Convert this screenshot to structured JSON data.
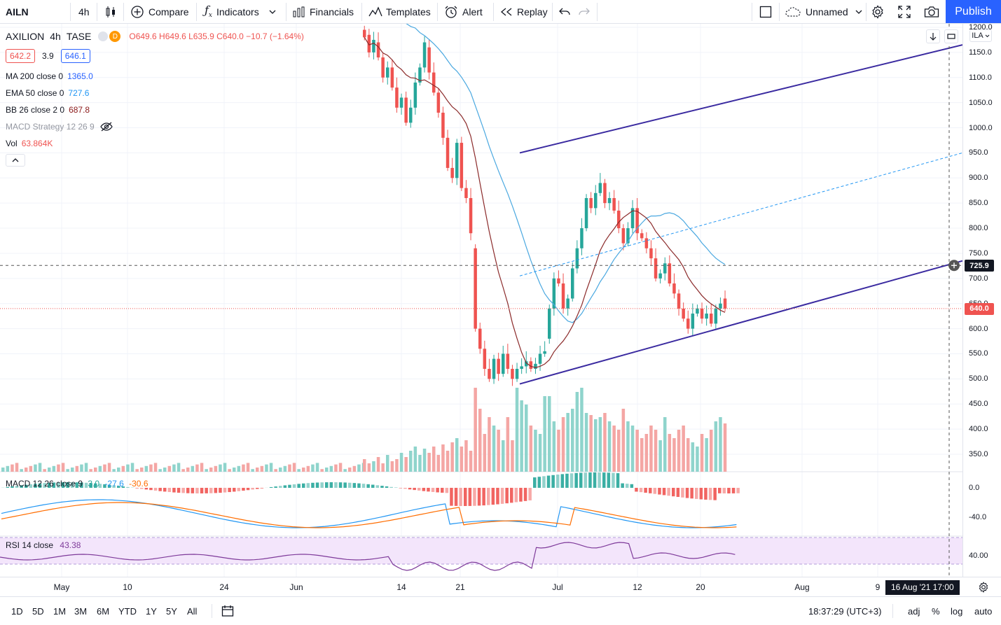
{
  "toolbar": {
    "symbol": "AILN",
    "interval": "4h",
    "compare": "Compare",
    "indicators": "Indicators",
    "financials": "Financials",
    "templates": "Templates",
    "alert": "Alert",
    "replay": "Replay",
    "layout_name": "Unnamed",
    "publish": "Publish"
  },
  "legend": {
    "name": "AXILION",
    "interval": "4h",
    "exchange": "TASE",
    "bid": "642.2",
    "spread": "3.9",
    "ask": "646.1",
    "ohlc": "O649.6  H649.6  L635.9  C640.0  −10.7  (−1.64%)",
    "indicators": [
      {
        "name": "MA 200 close 0",
        "value": "1365.0",
        "color": "#2962ff"
      },
      {
        "name": "EMA 50 close 0",
        "value": "727.6",
        "color": "#2196f3"
      },
      {
        "name": "BB 26 close 2 0",
        "value": "687.8",
        "color": "#8b1a1a"
      },
      {
        "name": "MACD Strategy 12 26 9",
        "value": "",
        "color": "#9598a1"
      },
      {
        "name": "Vol",
        "value": "63.864K",
        "color": "#ef5350"
      }
    ]
  },
  "price_scale": {
    "currency": "ILA",
    "labels": [
      "1200.0",
      "1150.0",
      "1100.0",
      "1050.0",
      "1000.0",
      "950.0",
      "900.0",
      "850.0",
      "800.0",
      "750.0",
      "700.0",
      "650.0",
      "600.0",
      "550.0",
      "500.0",
      "450.0",
      "400.0",
      "350.0"
    ],
    "crosshair_price": "725.9",
    "last_price": "640.0",
    "macd_labels": [
      "0.0",
      "-40.0"
    ],
    "rsi_labels": [
      "40.00"
    ]
  },
  "macd_legend": {
    "name": "MACD 12 26 close 9",
    "v1": "3.0",
    "v2": "-27.6",
    "v3": "-30.6"
  },
  "rsi_legend": {
    "name": "RSI 14 close",
    "value": "43.38"
  },
  "time_scale": {
    "labels": [
      "May",
      "10",
      "24",
      "Jun",
      "14",
      "21",
      "Jul",
      "12",
      "20",
      "Aug",
      "9"
    ],
    "crosshair_date": "16 Aug '21   17:00"
  },
  "bottom_bar": {
    "ranges": [
      "1D",
      "5D",
      "1M",
      "3M",
      "6M",
      "YTD",
      "1Y",
      "5Y",
      "All"
    ],
    "clock": "18:37:29 (UTC+3)",
    "adj": "adj",
    "percent": "%",
    "log": "log",
    "auto": "auto"
  },
  "colors": {
    "up": "#26a69a",
    "down": "#ef5350",
    "accent": "#2962ff",
    "channel": "#3a2aa0",
    "ema": "#4aa8e0",
    "bb": "#8b2a2a"
  },
  "chart_data": {
    "type": "candlestick",
    "interval": "4h",
    "price_axis_ticks": [
      350,
      400,
      450,
      500,
      550,
      600,
      650,
      700,
      750,
      800,
      850,
      900,
      950,
      1000,
      1050,
      1100,
      1150,
      1200
    ],
    "candles": [
      [
        1195,
        1180
      ],
      [
        1185,
        1150
      ],
      [
        1150,
        1175
      ],
      [
        1170,
        1140
      ],
      [
        1140,
        1100
      ],
      [
        1100,
        1120
      ],
      [
        1120,
        1080
      ],
      [
        1080,
        1040
      ],
      [
        1040,
        1060
      ],
      [
        1060,
        1010
      ],
      [
        1010,
        1040
      ],
      [
        1040,
        1090
      ],
      [
        1090,
        1120
      ],
      [
        1120,
        1170
      ],
      [
        1160,
        1110
      ],
      [
        1110,
        1070
      ],
      [
        1070,
        1030
      ],
      [
        1030,
        980
      ],
      [
        980,
        920
      ],
      [
        920,
        900
      ],
      [
        900,
        970
      ],
      [
        970,
        880
      ],
      [
        880,
        860
      ],
      [
        860,
        790
      ],
      [
        760,
        600
      ],
      [
        600,
        560
      ],
      [
        560,
        520
      ],
      [
        520,
        500
      ],
      [
        500,
        540
      ],
      [
        540,
        510
      ],
      [
        510,
        550
      ],
      [
        550,
        520
      ],
      [
        520,
        500
      ],
      [
        500,
        520
      ],
      [
        520,
        525
      ],
      [
        525,
        535
      ],
      [
        535,
        520
      ],
      [
        520,
        530
      ],
      [
        530,
        550
      ],
      [
        550,
        555
      ],
      [
        580,
        640
      ],
      [
        640,
        700
      ],
      [
        700,
        690
      ],
      [
        690,
        640
      ],
      [
        640,
        660
      ],
      [
        660,
        720
      ],
      [
        720,
        760
      ],
      [
        760,
        800
      ],
      [
        800,
        860
      ],
      [
        860,
        840
      ],
      [
        840,
        870
      ],
      [
        870,
        890
      ],
      [
        890,
        850
      ],
      [
        850,
        860
      ],
      [
        860,
        835
      ],
      [
        835,
        800
      ],
      [
        800,
        770
      ],
      [
        770,
        800
      ],
      [
        800,
        840
      ],
      [
        840,
        790
      ],
      [
        790,
        780
      ],
      [
        780,
        760
      ],
      [
        760,
        740
      ],
      [
        740,
        700
      ],
      [
        700,
        710
      ],
      [
        710,
        730
      ],
      [
        730,
        690
      ],
      [
        690,
        670
      ],
      [
        670,
        640
      ],
      [
        640,
        620
      ],
      [
        620,
        600
      ],
      [
        600,
        630
      ],
      [
        630,
        640
      ],
      [
        640,
        620
      ],
      [
        620,
        630
      ],
      [
        630,
        610
      ],
      [
        610,
        640
      ],
      [
        640,
        650
      ],
      [
        660,
        640
      ]
    ],
    "volume": [
      30,
      20,
      25,
      35,
      20,
      40,
      25,
      30,
      45,
      35,
      50,
      60,
      40,
      55,
      45,
      60,
      40,
      65,
      50,
      70,
      80,
      60,
      75,
      50,
      200,
      150,
      90,
      130,
      110,
      100,
      75,
      130,
      75,
      200,
      170,
      160,
      110,
      100,
      90,
      180,
      180,
      120,
      100,
      130,
      140,
      150,
      190,
      200,
      140,
      135,
      125,
      130,
      140,
      120,
      110,
      100,
      150,
      120,
      110,
      100,
      80,
      90,
      110,
      100,
      75,
      130,
      90,
      80,
      100,
      110,
      80,
      70,
      60,
      90,
      80,
      100,
      120,
      130,
      115
    ],
    "annotations": {
      "channel_upper": [
        950,
        1165
      ],
      "channel_lower": [
        490,
        735
      ],
      "mid_dashed": [
        705,
        950
      ]
    }
  }
}
